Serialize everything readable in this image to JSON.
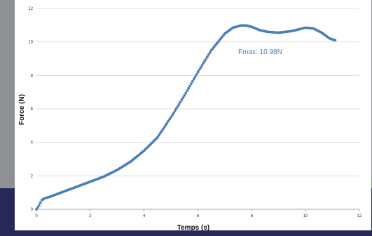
{
  "chart_data": {
    "type": "scatter",
    "title": "",
    "xlabel": "Temps (s)",
    "ylabel": "Force (N)",
    "xlim": [
      0,
      12
    ],
    "ylim": [
      0,
      12
    ],
    "xticks": [
      "0",
      "2",
      "4",
      "6",
      "8",
      "10",
      "12"
    ],
    "yticks": [
      "0",
      "2",
      "4",
      "6",
      "8",
      "10",
      "12"
    ],
    "grid": "horizontal",
    "legend": "none",
    "annotation": "Fmax: 10.98N",
    "series_color": "#4a7ebb",
    "x": [
      0.0,
      0.1,
      0.2,
      0.3,
      0.5,
      0.75,
      1.0,
      1.5,
      2.0,
      2.5,
      3.0,
      3.5,
      4.0,
      4.5,
      5.0,
      5.5,
      6.0,
      6.5,
      7.0,
      7.3,
      7.6,
      7.8,
      8.0,
      8.3,
      8.6,
      9.0,
      9.5,
      10.0,
      10.3,
      10.6,
      10.9,
      11.1
    ],
    "y": [
      0.0,
      0.25,
      0.55,
      0.65,
      0.75,
      0.9,
      1.05,
      1.35,
      1.65,
      1.95,
      2.35,
      2.85,
      3.5,
      4.3,
      5.5,
      6.8,
      8.2,
      9.5,
      10.5,
      10.85,
      10.98,
      10.98,
      10.9,
      10.7,
      10.6,
      10.55,
      10.65,
      10.85,
      10.8,
      10.55,
      10.2,
      10.1
    ]
  }
}
